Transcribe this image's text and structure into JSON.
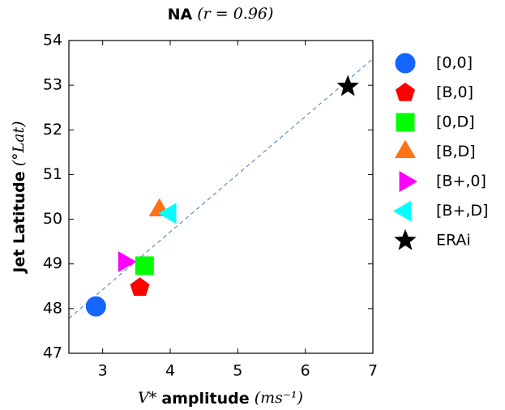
{
  "chart_data": {
    "type": "scatter",
    "title": "NA",
    "title_math": "(r = 0.96)",
    "xlabel_math": "V*",
    "xlabel": "amplitude",
    "xlabel_unit": "(ms⁻¹)",
    "ylabel": "Jet Latitude",
    "ylabel_unit": "(°Lat)",
    "xlim": [
      2.5,
      7
    ],
    "ylim": [
      47,
      54
    ],
    "xticks": [
      3,
      4,
      5,
      6,
      7
    ],
    "yticks": [
      47,
      48,
      49,
      50,
      51,
      52,
      53,
      54
    ],
    "fit_line": {
      "color": "#3a7ab8",
      "x": [
        2.5,
        7
      ],
      "y": [
        47.78,
        53.59
      ]
    },
    "series": [
      {
        "name": "[0,0]",
        "marker": "circle",
        "color": "#1565ff",
        "x": [
          2.9
        ],
        "values": [
          48.05
        ]
      },
      {
        "name": "[B,0]",
        "marker": "pentagon",
        "color": "#ff0000",
        "x": [
          3.55
        ],
        "values": [
          48.47
        ]
      },
      {
        "name": "[0,D]",
        "marker": "square",
        "color": "#00ff00",
        "x": [
          3.62
        ],
        "values": [
          48.96
        ]
      },
      {
        "name": "[B,D]",
        "marker": "triangle-up",
        "color": "#ff7216",
        "x": [
          3.84
        ],
        "values": [
          50.2
        ]
      },
      {
        "name": "[B+,0]",
        "marker": "triangle-right",
        "color": "#ff00ff",
        "x": [
          3.32
        ],
        "values": [
          49.05
        ]
      },
      {
        "name": "[B+,D]",
        "marker": "triangle-left",
        "color": "#00ffff",
        "x": [
          4.0
        ],
        "values": [
          50.13
        ]
      },
      {
        "name": "ERAi",
        "marker": "star",
        "color": "#000000",
        "x": [
          6.63
        ],
        "values": [
          52.97
        ]
      }
    ]
  }
}
